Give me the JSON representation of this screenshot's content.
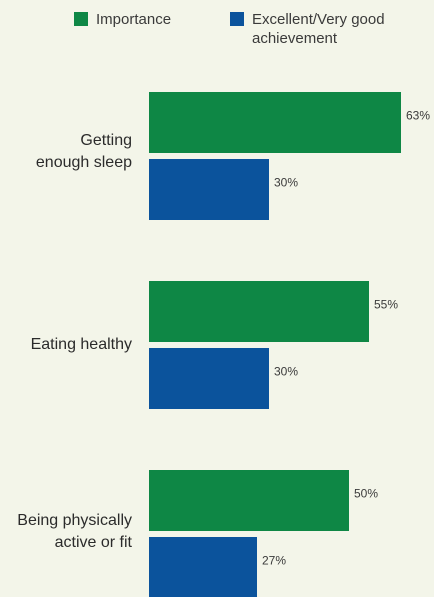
{
  "colors": {
    "background": "#f3f5e9",
    "importance": "#0e8745",
    "achievement": "#0b539c"
  },
  "chart_data": {
    "type": "bar",
    "orientation": "horizontal",
    "categories": [
      "Getting enough sleep",
      "Eating healthy",
      "Being physically active or fit"
    ],
    "series": [
      {
        "name": "Importance",
        "values": [
          63,
          55,
          50
        ],
        "color": "#0e8745"
      },
      {
        "name": "Excellent/Very good achievement",
        "values": [
          30,
          30,
          27
        ],
        "color": "#0b539c"
      }
    ],
    "value_labels": {
      "importance": [
        "63%",
        "55%",
        "50%"
      ],
      "achievement": [
        "30%",
        "30%",
        "27%"
      ]
    },
    "unit": "%",
    "legend_position": "top",
    "grid": false
  },
  "legend": {
    "importance": "Importance",
    "achievement_line1": "Excellent/Very good",
    "achievement_line2": "achievement"
  },
  "labels": {
    "cat0_line1": "Getting",
    "cat0_line2": "enough sleep",
    "cat1_line1": "Eating healthy",
    "cat2_line1": "Being physically",
    "cat2_line2": "active or fit"
  }
}
